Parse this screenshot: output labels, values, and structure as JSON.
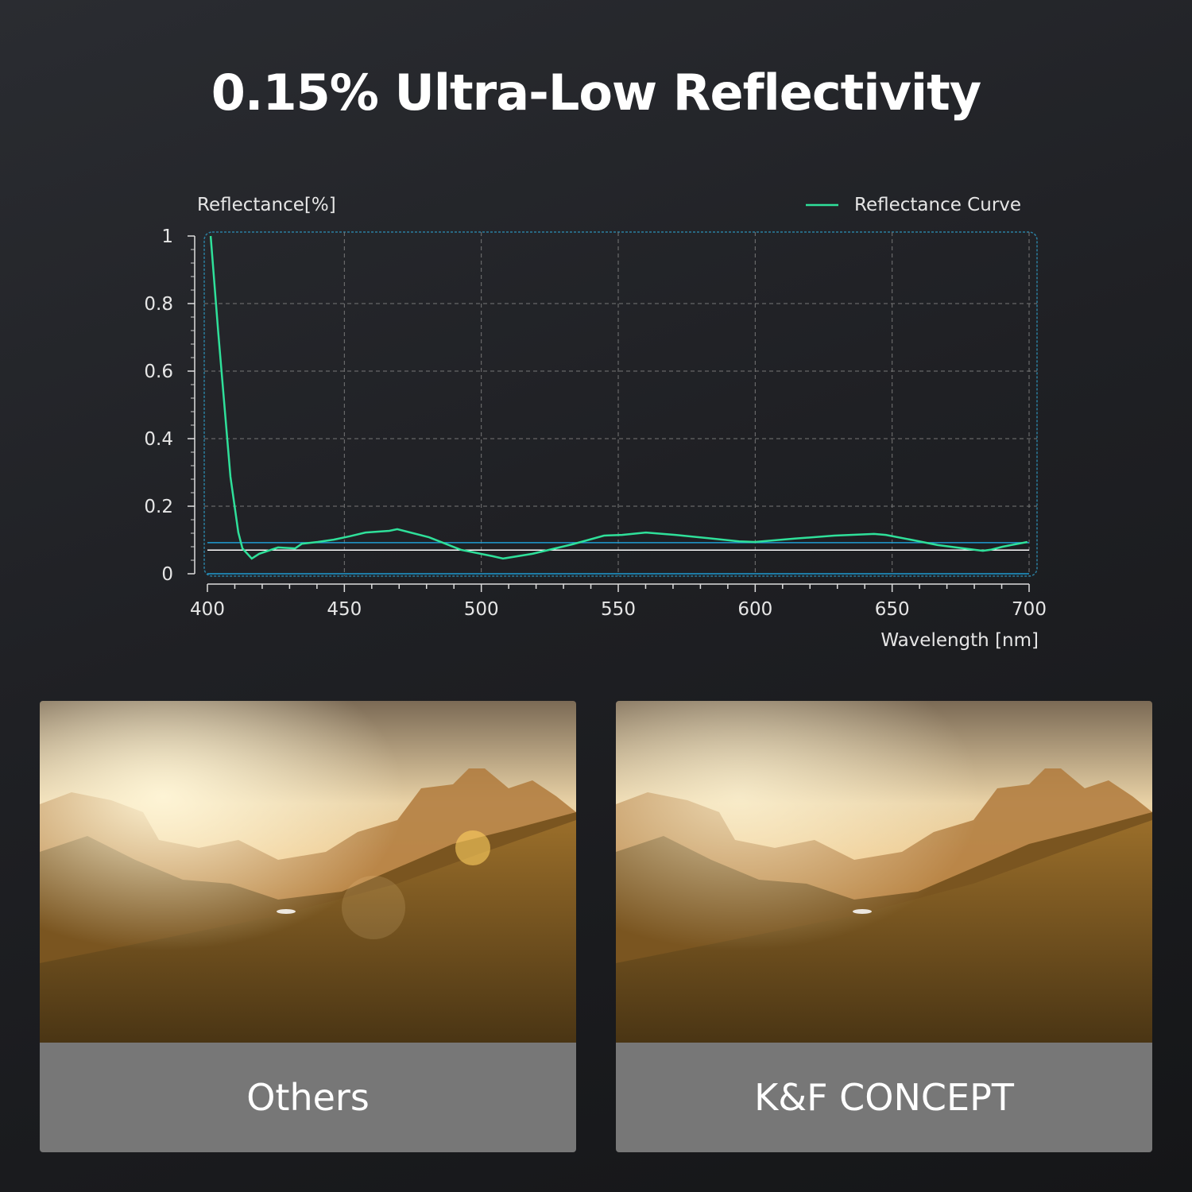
{
  "title": "0.15% Ultra-Low Reflectivity",
  "chart_data": {
    "type": "line",
    "ylabel": "Reflectance[%]",
    "xlabel": "Wavelength [nm]",
    "xlim": [
      400,
      700
    ],
    "ylim": [
      0,
      1
    ],
    "xticks": [
      400,
      450,
      500,
      550,
      600,
      650,
      700
    ],
    "yticks": [
      "0",
      "0.2",
      "0.4",
      "0.6",
      "0.8",
      "1"
    ],
    "grid": true,
    "legend_position": "top-right",
    "series": [
      {
        "name": "Reflectance Curve",
        "color": "#2fe09a",
        "x": [
          401.2,
          404,
          408.4,
          411.3,
          412.8,
          416.2,
          418.9,
          425.8,
          432,
          434.5,
          440.3,
          446.1,
          452,
          457.7,
          466.4,
          469.3,
          480.9,
          492.5,
          504.1,
          507.9,
          518.7,
          533.2,
          544.8,
          551.4,
          560.1,
          570.9,
          594.1,
          599.9,
          614.4,
          628.9,
          643.4,
          647.7,
          657.9,
          666.6,
          678.2,
          683.1,
          686,
          690.3,
          699.4
        ],
        "y": [
          1.0,
          0.71,
          0.287,
          0.122,
          0.075,
          0.045,
          0.059,
          0.078,
          0.075,
          0.089,
          0.094,
          0.101,
          0.111,
          0.122,
          0.127,
          0.132,
          0.108,
          0.071,
          0.052,
          0.045,
          0.059,
          0.087,
          0.113,
          0.115,
          0.122,
          0.115,
          0.096,
          0.094,
          0.104,
          0.113,
          0.118,
          0.115,
          0.099,
          0.085,
          0.073,
          0.068,
          0.071,
          0.08,
          0.094
        ]
      }
    ],
    "reference_lines": [
      {
        "y": 0.092,
        "color": "#1f9bd1"
      },
      {
        "y": 0.07,
        "color": "#ffffff"
      },
      {
        "y": 0.0,
        "color": "#1f9bd1"
      }
    ]
  },
  "comparison": {
    "left_label": "Others",
    "right_label": "K&F CONCEPT"
  }
}
